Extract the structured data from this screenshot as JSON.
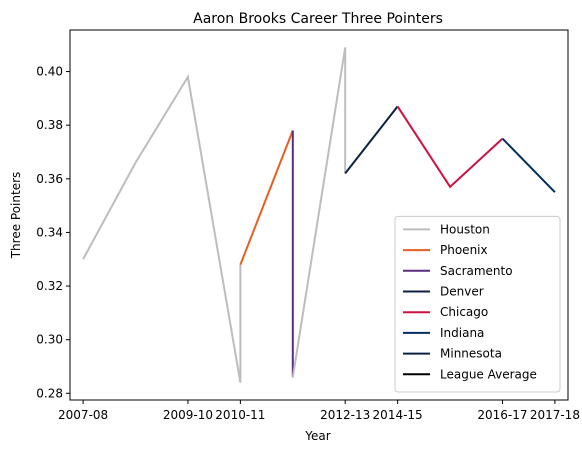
{
  "chart_data": {
    "type": "line",
    "title": "Aaron Brooks  Career Three Pointers",
    "xlabel": "Year",
    "ylabel": "Three Pointers",
    "x_ticks": [
      "2007-08",
      "2009-10",
      "2010-11",
      "2012-13",
      "2014-15",
      "2016-17",
      "2017-18"
    ],
    "y_ticks": [
      "0.28",
      "0.30",
      "0.32",
      "0.34",
      "0.36",
      "0.38",
      "0.40"
    ],
    "ylim": [
      0.2775,
      0.4155
    ],
    "xlim": [
      -0.25,
      9.25
    ],
    "grid": false,
    "legend_position": "lower-right",
    "series": [
      {
        "name": "Houston",
        "color": "#bdbdbd",
        "points": [
          [
            0,
            0.33
          ],
          [
            1,
            0.366
          ],
          [
            2,
            0.398
          ],
          [
            3,
            0.284
          ],
          [
            3,
            0.328
          ]
        ]
      },
      {
        "name": "Phoenix",
        "color": "#e56020",
        "points": [
          [
            3,
            0.328
          ],
          [
            4,
            0.378
          ]
        ]
      },
      {
        "name": "Sacramento",
        "color": "#5a2d81",
        "points": [
          [
            4,
            0.378
          ],
          [
            4,
            0.286
          ]
        ]
      },
      {
        "name": "Houston (return)",
        "color": "#bdbdbd",
        "points": [
          [
            4,
            0.286
          ],
          [
            5,
            0.409
          ],
          [
            5,
            0.362
          ]
        ]
      },
      {
        "name": "Denver",
        "color": "#0e2240",
        "points": [
          [
            5,
            0.362
          ],
          [
            6,
            0.387
          ]
        ]
      },
      {
        "name": "Chicago",
        "color": "#ce1141",
        "points": [
          [
            6,
            0.387
          ],
          [
            7,
            0.357
          ],
          [
            8,
            0.375
          ]
        ]
      },
      {
        "name": "Indiana",
        "color": "#002d62",
        "points": [
          [
            8,
            0.375
          ],
          [
            9,
            0.355
          ]
        ]
      }
    ],
    "legend": [
      {
        "label": "Houston",
        "color": "#bdbdbd"
      },
      {
        "label": "Phoenix",
        "color": "#e56020"
      },
      {
        "label": "Sacramento",
        "color": "#5a2d81"
      },
      {
        "label": "Denver",
        "color": "#0e2240"
      },
      {
        "label": "Chicago",
        "color": "#ce1141"
      },
      {
        "label": "Indiana",
        "color": "#002d62"
      },
      {
        "label": "Minnesota",
        "color": "#0c2340"
      },
      {
        "label": "League Average",
        "color": "#000000"
      }
    ]
  }
}
